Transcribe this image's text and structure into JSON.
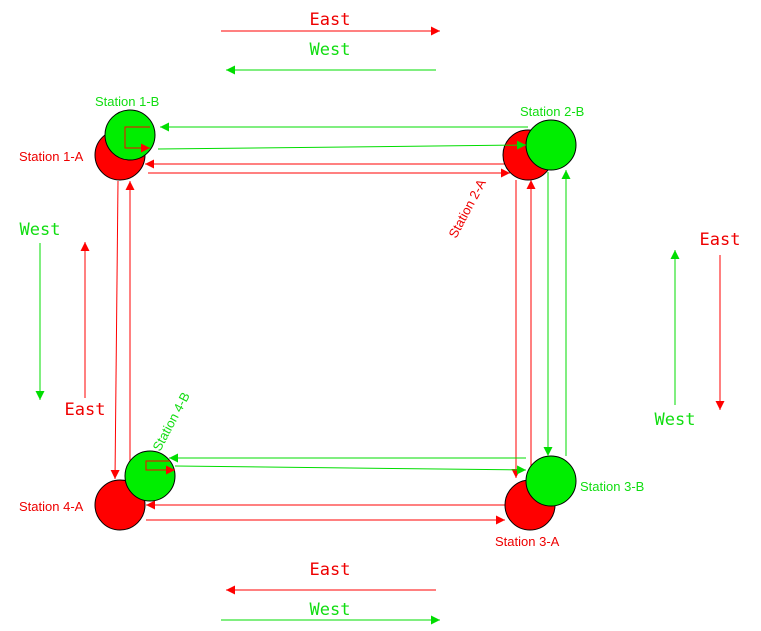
{
  "colors": {
    "red": "#ff0000",
    "green": "#00dd00",
    "stroke": "#000000",
    "red_text": "#ee0000",
    "green_text": "#11dd11"
  },
  "direction_labels": {
    "top_east": "East",
    "top_west": "West",
    "left_west": "West",
    "left_east": "East",
    "right_east": "East",
    "right_west": "West",
    "bottom_east": "East",
    "bottom_west": "West"
  },
  "stations": {
    "s1a": "Station 1-A",
    "s1b": "Station 1-B",
    "s2a": "Station 2-A",
    "s2b": "Station 2-B",
    "s3a": "Station 3-A",
    "s3b": "Station 3-B",
    "s4a": "Station 4-A",
    "s4b": "Station 4-B"
  }
}
